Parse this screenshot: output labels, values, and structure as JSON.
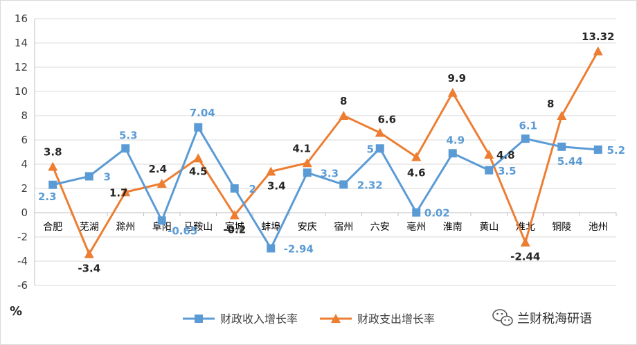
{
  "chart_data": {
    "type": "line",
    "unit_label": "%",
    "categories": [
      "合肥",
      "芜湖",
      "滁州",
      "阜阳",
      "马鞍山",
      "宣城",
      "蚌埠",
      "安庆",
      "宿州",
      "六安",
      "亳州",
      "淮南",
      "黄山",
      "淮北",
      "铜陵",
      "池州"
    ],
    "ylim": [
      -6,
      16
    ],
    "yticks": [
      -6,
      -4,
      -2,
      0,
      2,
      4,
      6,
      8,
      10,
      12,
      14,
      16
    ],
    "grid": true,
    "legend_position": "bottom-center",
    "series": [
      {
        "name": "财政收入增长率",
        "color": "#5b9bd5",
        "marker": "square",
        "values": [
          2.3,
          3,
          5.3,
          -0.65,
          7.04,
          2,
          -2.94,
          3.3,
          2.32,
          5.3,
          0.02,
          4.9,
          3.5,
          6.1,
          5.44,
          5.2
        ],
        "labels": [
          "2.3",
          "3",
          "5.3",
          "-0.65",
          "7.04",
          "2",
          "-2.94",
          "3.3",
          "2.32",
          "5.3",
          "0.02",
          "4.9",
          "3.5",
          "6.1",
          "5.44",
          "5.2"
        ]
      },
      {
        "name": "财政支出增长率",
        "color": "#ed7d31",
        "marker": "triangle",
        "values": [
          3.8,
          -3.4,
          1.7,
          2.4,
          4.5,
          -0.2,
          3.4,
          4.1,
          8,
          6.6,
          4.6,
          9.9,
          4.8,
          -2.44,
          8,
          13.32
        ],
        "labels": [
          "3.8",
          "-3.4",
          "1.7",
          "2.4",
          "4.5",
          "-0.2",
          "3.4",
          "4.1",
          "8",
          "6.6",
          "4.6",
          "9.9",
          "4.8",
          "-2.44",
          "8",
          "13.32"
        ]
      }
    ]
  },
  "watermark": {
    "text": "兰财税海研语",
    "icon": "wechat-icon"
  }
}
